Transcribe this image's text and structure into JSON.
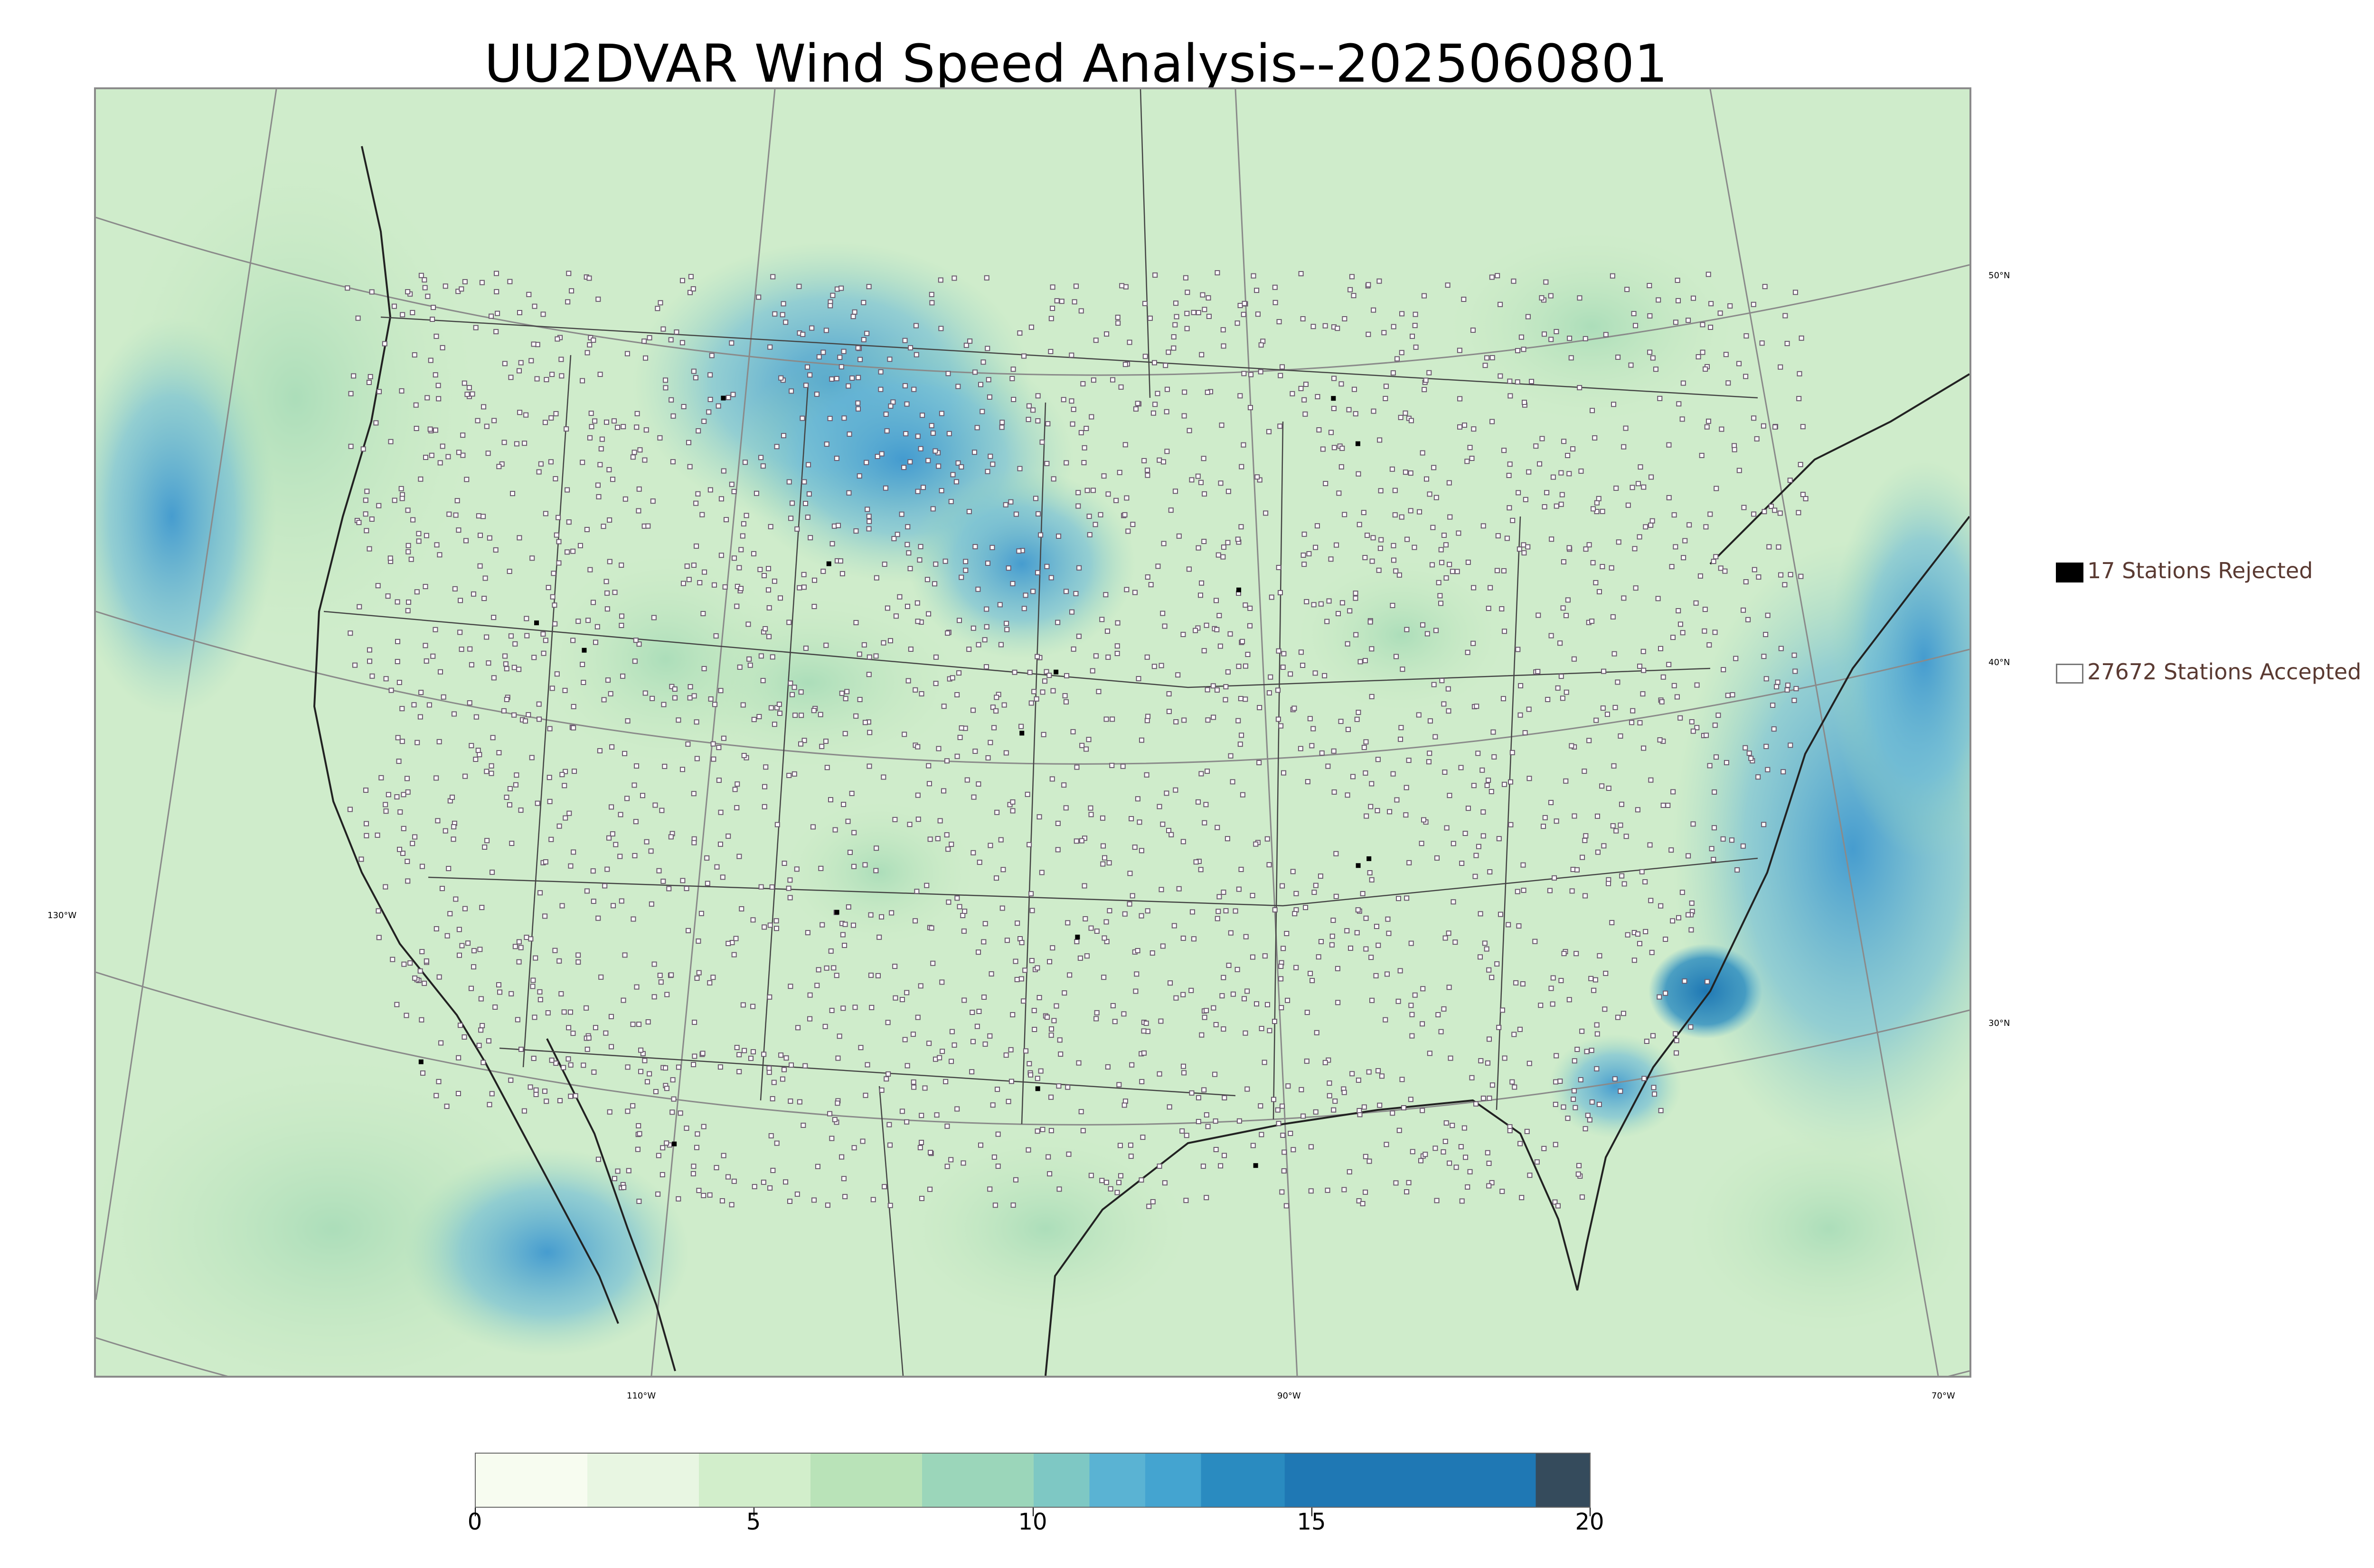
{
  "title": "UU2DVAR Wind Speed Analysis--2025060801",
  "axes": {
    "lat_labels": [
      "50°N",
      "40°N",
      "30°N"
    ],
    "lon_labels": [
      "130°W",
      "110°W",
      "90°W",
      "70°W"
    ]
  },
  "legend": [
    {
      "text": "17 Stations Rejected",
      "swatch": "filled",
      "color": "#000000"
    },
    {
      "text": "27672 Stations Accepted",
      "swatch": "hollow",
      "color": "#ffffff"
    }
  ],
  "colorbar": {
    "min": 0,
    "max": 20,
    "ticks": [
      "0",
      "5",
      "10",
      "15",
      "20"
    ],
    "colors": [
      "#f7fcf0",
      "#e8f6e2",
      "#d2eecb",
      "#b9e3b8",
      "#9bd6ba",
      "#7ec8c4",
      "#5ab3d3",
      "#44a4d0",
      "#2a8bc0",
      "#1f78b4",
      "#354b5c"
    ],
    "bounds": [
      0,
      2,
      4,
      6,
      8,
      10,
      11,
      12,
      13,
      14.5,
      19,
      20
    ]
  },
  "map": {
    "land_color": "#dff1d6",
    "ocean_color": "#cfeccb",
    "high_wind_color": "#56a9d6",
    "station_color": "#6b5a6e"
  }
}
